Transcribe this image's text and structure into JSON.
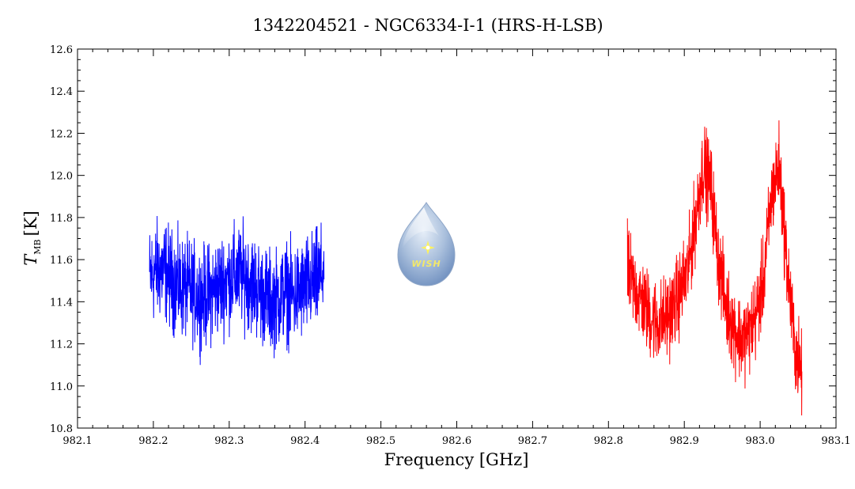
{
  "chart_data": {
    "type": "line",
    "title": "1342204521 - NGC6334-I-1 (HRS-H-LSB)",
    "xlabel": "Frequency [GHz]",
    "ylabel_main": "T",
    "ylabel_sub": "MB",
    "ylabel_unit": "[K]",
    "xlim": [
      982.1,
      983.1
    ],
    "ylim": [
      10.8,
      12.6
    ],
    "xticks": [
      982.1,
      982.2,
      982.3,
      982.4,
      982.5,
      982.6,
      982.7,
      982.8,
      982.9,
      983.0,
      983.1
    ],
    "xtick_labels": [
      "982.1",
      "982.2",
      "982.3",
      "982.4",
      "982.5",
      "982.6",
      "982.7",
      "982.8",
      "982.9",
      "983.0",
      "983.1"
    ],
    "yticks": [
      10.8,
      11.0,
      11.2,
      11.4,
      11.6,
      11.8,
      12.0,
      12.2,
      12.4,
      12.6
    ],
    "ytick_labels": [
      "10.8",
      "11.0",
      "11.2",
      "11.4",
      "11.6",
      "11.8",
      "12.0",
      "12.2",
      "12.4",
      "12.6"
    ],
    "grid": false,
    "logo_text": "WISH",
    "colors": {
      "series_blue": "#0000ff",
      "series_red": "#ff0000"
    },
    "series": [
      {
        "color": "#0000ff",
        "x": [
          982.195,
          982.205,
          982.215,
          982.225,
          982.235,
          982.245,
          982.255,
          982.265,
          982.275,
          982.285,
          982.295,
          982.305,
          982.315,
          982.325,
          982.335,
          982.345,
          982.355,
          982.365,
          982.375,
          982.385,
          982.395,
          982.405,
          982.415,
          982.425
        ],
        "y": [
          11.52,
          11.55,
          11.55,
          11.5,
          11.47,
          11.46,
          11.44,
          11.42,
          11.44,
          11.47,
          11.5,
          11.52,
          11.53,
          11.51,
          11.47,
          11.43,
          11.4,
          11.42,
          11.45,
          11.43,
          11.45,
          11.48,
          11.5,
          11.55
        ],
        "noise": 0.2
      },
      {
        "color": "#ff0000",
        "x": [
          982.825,
          982.835,
          982.845,
          982.855,
          982.865,
          982.875,
          982.885,
          982.895,
          982.905,
          982.915,
          982.925,
          982.935,
          982.945,
          982.955,
          982.965,
          982.975,
          982.985,
          982.995,
          983.005,
          983.015,
          983.025,
          983.035,
          983.045,
          983.055
        ],
        "y": [
          11.55,
          11.46,
          11.4,
          11.33,
          11.3,
          11.32,
          11.37,
          11.45,
          11.55,
          11.8,
          12.05,
          11.95,
          11.6,
          11.38,
          11.28,
          11.22,
          11.25,
          11.34,
          11.52,
          11.9,
          12.05,
          11.6,
          11.2,
          11.05
        ],
        "noise": 0.17
      }
    ]
  }
}
